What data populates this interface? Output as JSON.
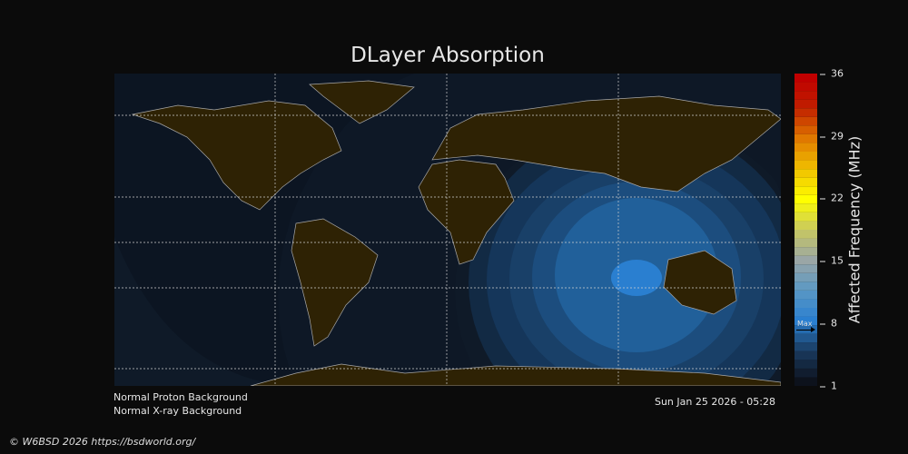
{
  "title": "DLayer Absorption",
  "colorbar": {
    "label": "Affected Frequency (MHz)",
    "ticks": [
      "36",
      "29",
      "22",
      "15",
      "8",
      "1"
    ],
    "min": 1,
    "max": 36,
    "max_marker_label": "Max",
    "max_marker_value": 7,
    "stops": [
      "#0d121c",
      "#1a3a5e",
      "#2a7fd0",
      "#5a98c4",
      "#9aa6a6",
      "#c8c860",
      "#ffff00",
      "#f0c000",
      "#e07800",
      "#c02000",
      "#c00000"
    ]
  },
  "status": {
    "proton": "Normal Proton Background",
    "xray": "Normal X-ray Background",
    "timestamp": "Sun Jan 25 2026 - 05:28"
  },
  "copyright": "© W6BSD 2026 https://bsdworld.org/",
  "colors": {
    "ocean": "#0c1522",
    "land": "#2e2204",
    "coast": "#a8a8a8"
  }
}
